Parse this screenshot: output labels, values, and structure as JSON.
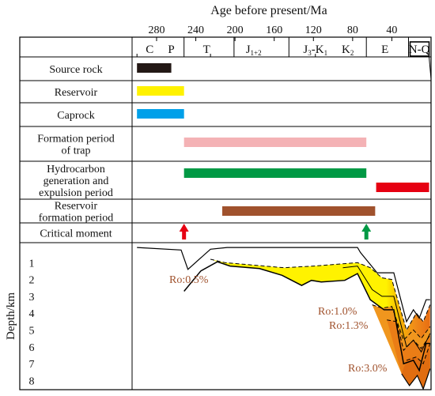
{
  "title": "Age before present/Ma",
  "age_ticks": [
    {
      "label": "280",
      "value": 280
    },
    {
      "label": "240",
      "value": 240
    },
    {
      "label": "200",
      "value": 200
    },
    {
      "label": "160",
      "value": 160
    },
    {
      "label": "120",
      "value": 120
    },
    {
      "label": "80",
      "value": 80
    },
    {
      "label": "40",
      "value": 40
    }
  ],
  "periods": [
    "C",
    "P",
    "T",
    "J1+2",
    "J3-K1",
    "K2",
    "E",
    "N-Q"
  ],
  "rows": [
    {
      "label": "Source rock"
    },
    {
      "label": "Reservoir"
    },
    {
      "label": "Caprock"
    },
    {
      "label": "Formation period of trap"
    },
    {
      "label": "Hydrocarbon generation and expulsion period"
    },
    {
      "label": "Reservoir formation period"
    },
    {
      "label": "Critical moment"
    }
  ],
  "bars": [
    {
      "row": "Source rock",
      "start_ma": 300,
      "end_ma": 265,
      "color": "#231815"
    },
    {
      "row": "Reservoir",
      "start_ma": 300,
      "end_ma": 252,
      "color": "#fff200"
    },
    {
      "row": "Caprock",
      "start_ma": 300,
      "end_ma": 252,
      "color": "#00a0e9"
    },
    {
      "row": "Formation period of trap",
      "start_ma": 252,
      "end_ma": 66,
      "color": "#f4b2b5"
    },
    {
      "row": "Hydrocarbon generation and expulsion period",
      "start_ma": 252,
      "end_ma": 66,
      "color": "#009944"
    },
    {
      "row": "Hydrocarbon generation and expulsion period",
      "start_ma": 56,
      "end_ma": 2,
      "color": "#e60012"
    },
    {
      "row": "Reservoir formation period",
      "start_ma": 213,
      "end_ma": 57,
      "color": "#a0522d"
    }
  ],
  "critical_moments": [
    {
      "age_ma": 252,
      "color": "#e60012"
    },
    {
      "age_ma": 66,
      "color": "#009944"
    }
  ],
  "depth_axis": {
    "label": "Depth/km",
    "ticks": [
      {
        "label": "1",
        "value": 1
      },
      {
        "label": "2",
        "value": 2
      },
      {
        "label": "3",
        "value": 3
      },
      {
        "label": "4",
        "value": 4
      },
      {
        "label": "5",
        "value": 5
      },
      {
        "label": "6",
        "value": 6
      },
      {
        "label": "7",
        "value": 7
      },
      {
        "label": "8",
        "value": 8
      }
    ]
  },
  "ro_labels": [
    "Ro:0.5%",
    "Ro:1.0%",
    "Ro:1.3%",
    "Ro:3.0%"
  ],
  "burial": {
    "top": [
      [
        300,
        0.1
      ],
      [
        255,
        0.25
      ],
      [
        248,
        1.4
      ],
      [
        225,
        0.2
      ],
      [
        208,
        0.1
      ],
      [
        115,
        0.1
      ],
      [
        75,
        0.1
      ],
      [
        72,
        0.4
      ],
      [
        55,
        1.6
      ],
      [
        38,
        1.6
      ],
      [
        25,
        4.5
      ],
      [
        18,
        3.8
      ],
      [
        12,
        4.3
      ],
      [
        5,
        3.2
      ],
      [
        1,
        3.2
      ]
    ],
    "base": [
      [
        252,
        2.7
      ],
      [
        235,
        1.5
      ],
      [
        218,
        0.95
      ],
      [
        205,
        1.2
      ],
      [
        175,
        1.35
      ],
      [
        152,
        1.75
      ],
      [
        132,
        2.35
      ],
      [
        122,
        2.05
      ],
      [
        112,
        2.15
      ],
      [
        88,
        2.05
      ],
      [
        75,
        1.65
      ],
      [
        62,
        3.2
      ],
      [
        48,
        3.8
      ],
      [
        38,
        3.8
      ],
      [
        28,
        7.0
      ],
      [
        18,
        6.8
      ],
      [
        12,
        7.4
      ],
      [
        5,
        5.8
      ],
      [
        1,
        5.8
      ]
    ],
    "ro05": [
      [
        225,
        0.8
      ],
      [
        210,
        1.0
      ],
      [
        150,
        1.3
      ],
      [
        120,
        1.2
      ],
      [
        75,
        1.0
      ],
      [
        62,
        1.3
      ],
      [
        50,
        1.9
      ],
      [
        40,
        2.0
      ],
      [
        25,
        5.0
      ],
      [
        15,
        4.0
      ],
      [
        8,
        4.5
      ],
      [
        1,
        3.5
      ]
    ],
    "ro10": [
      [
        60,
        3.5
      ],
      [
        50,
        3.7
      ],
      [
        40,
        3.6
      ],
      [
        28,
        5.6
      ],
      [
        18,
        5.0
      ],
      [
        10,
        5.5
      ],
      [
        1,
        4.8
      ]
    ],
    "ro13": [
      [
        45,
        4.4
      ],
      [
        35,
        4.5
      ],
      [
        28,
        6.2
      ],
      [
        18,
        5.6
      ],
      [
        10,
        6.1
      ],
      [
        1,
        5.3
      ]
    ],
    "ro30": [
      [
        25,
        6.8
      ],
      [
        15,
        6.6
      ],
      [
        8,
        7.0
      ],
      [
        1,
        5.8
      ]
    ],
    "lowest": [
      [
        30,
        7.6
      ],
      [
        22,
        8.3
      ],
      [
        14,
        7.7
      ],
      [
        8,
        8.5
      ],
      [
        1,
        7.3
      ]
    ]
  }
}
